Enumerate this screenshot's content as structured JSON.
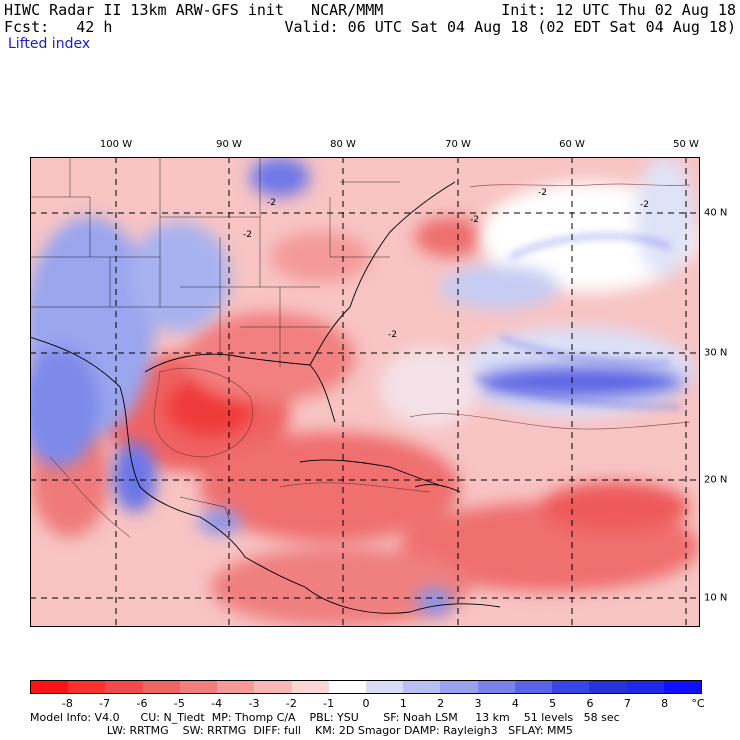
{
  "header": {
    "title_left": "HIWC Radar II 13km ARW-GFS init   NCAR/MMM",
    "forecast": "Fcst:   42 h",
    "init": "Init: 12 UTC Thu 02 Aug 18",
    "valid": "Valid: 06 UTC Sat 04 Aug 18 (02 EDT Sat 04 Aug 18)",
    "field": "Lifted index"
  },
  "map": {
    "lon_labels": [
      "100 W",
      "90 W",
      "80 W",
      "70 W",
      "60 W",
      "50 W"
    ],
    "lat_labels": [
      "40 N",
      "30 N",
      "20 N",
      "10 N"
    ],
    "contour_labels": [
      "-2",
      "-2",
      "-2",
      "-2",
      "-2",
      "-2"
    ]
  },
  "colorbar": {
    "labels": [
      "-8",
      "-7",
      "-6",
      "-5",
      "-4",
      "-3",
      "-2",
      "-1",
      "0",
      "1",
      "2",
      "3",
      "4",
      "5",
      "6",
      "7",
      "8",
      "°C"
    ],
    "colors": [
      "#ff1414",
      "#ff3030",
      "#f24a4a",
      "#ef6464",
      "#f27d7d",
      "#f59999",
      "#f8b6b6",
      "#fbd6d6",
      "#ffffff",
      "#d9dcf7",
      "#b9bff2",
      "#9aa2ee",
      "#7a83ea",
      "#5a64e6",
      "#3b46e2",
      "#2a33d8",
      "#1e28e6",
      "#1010ff"
    ]
  },
  "footer": {
    "line1": "Model Info: V4.0      CU: N_Tiedt  MP: Thomp C/A    PBL: YSU       SF: Noah LSM     13 km    51 levels   58 sec",
    "line2": "                      LW: RRTMG    SW: RRTMG  DIFF: full    KM: 2D Smagor DAMP: Rayleigh3   SFLAY: MM5"
  }
}
